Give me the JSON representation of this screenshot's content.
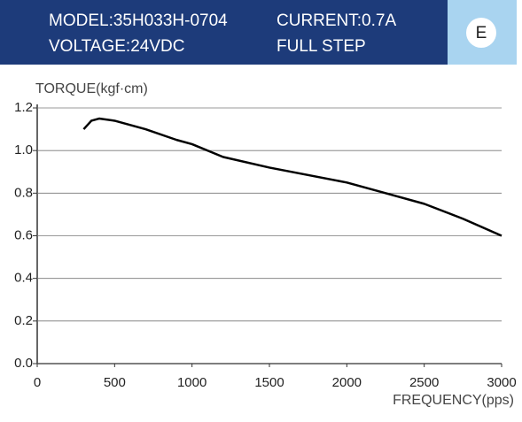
{
  "header": {
    "model": "MODEL:35H033H-0704",
    "current": "CURRENT:0.7A",
    "voltage": "VOLTAGE:24VDC",
    "step": "FULL STEP",
    "badge": "E"
  },
  "chart_data": {
    "type": "line",
    "y_label": "TORQUE(kgf·cm)",
    "x_label": "FREQUENCY(pps)",
    "x": [
      300,
      350,
      400,
      500,
      700,
      900,
      1000,
      1200,
      1500,
      2000,
      2250,
      2500,
      2750,
      3000
    ],
    "series": [
      {
        "color": "#000000",
        "values": [
          1.1,
          1.14,
          1.15,
          1.14,
          1.1,
          1.05,
          1.03,
          0.97,
          0.92,
          0.85,
          0.8,
          0.75,
          0.68,
          0.6
        ]
      }
    ],
    "xlim": [
      0,
      3000
    ],
    "xticks": [
      0,
      500,
      1000,
      1500,
      2000,
      2500,
      3000
    ],
    "ylim": [
      0,
      1.2
    ],
    "yticks": [
      {
        "value": 0,
        "label": "0.0"
      },
      0.2,
      0.4,
      0.6,
      0.8,
      {
        "value": 1,
        "label": "1.0"
      },
      1.2
    ],
    "grid": true
  }
}
